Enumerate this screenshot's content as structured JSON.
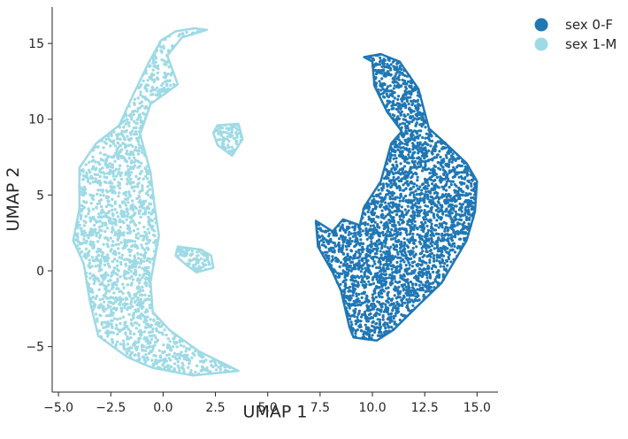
{
  "chart_data": {
    "type": "scatter",
    "title": "",
    "xlabel": "UMAP 1",
    "ylabel": "UMAP 2",
    "xlim": [
      -5.3,
      16.0
    ],
    "ylim": [
      -8.0,
      17.4
    ],
    "xticks": [
      -5.0,
      -2.5,
      0.0,
      2.5,
      5.0,
      7.5,
      10.0,
      12.5,
      15.0
    ],
    "xtick_labels": [
      "−5.0",
      "−2.5",
      "0.0",
      "2.5",
      "5.0",
      "7.5",
      "10.0",
      "12.5",
      "15.0"
    ],
    "yticks": [
      -5,
      0,
      5,
      10,
      15
    ],
    "ytick_labels": [
      "−5",
      "0",
      "5",
      "10",
      "15"
    ],
    "grid": false,
    "legend_position": "outside-top-right",
    "series": [
      {
        "name": "sex 0-F",
        "color": "#1f77b4",
        "clusters": [
          {
            "shape": "cluster with elongated loop at top",
            "outline": [
              [
                7.3,
                3.3
              ],
              [
                8.1,
                2.6
              ],
              [
                8.6,
                3.4
              ],
              [
                9.4,
                3.0
              ],
              [
                9.6,
                4.2
              ],
              [
                10.4,
                5.9
              ],
              [
                10.9,
                8.4
              ],
              [
                11.4,
                9.2
              ],
              [
                10.7,
                10.5
              ],
              [
                10.1,
                12.2
              ],
              [
                10.0,
                13.8
              ],
              [
                9.6,
                14.1
              ],
              [
                10.4,
                14.3
              ],
              [
                11.3,
                13.8
              ],
              [
                12.2,
                12.0
              ],
              [
                12.7,
                9.4
              ],
              [
                13.5,
                8.4
              ],
              [
                14.5,
                7.1
              ],
              [
                15.0,
                5.9
              ],
              [
                14.9,
                3.9
              ],
              [
                14.5,
                2.0
              ],
              [
                13.3,
                -0.8
              ],
              [
                12.1,
                -2.4
              ],
              [
                11.0,
                -3.9
              ],
              [
                10.2,
                -4.6
              ],
              [
                9.1,
                -4.4
              ],
              [
                8.9,
                -3.7
              ],
              [
                8.5,
                -1.3
              ],
              [
                8.1,
                -0.1
              ],
              [
                7.4,
                1.6
              ]
            ],
            "count": 3200
          }
        ]
      },
      {
        "name": "sex 1-M",
        "color": "#9edae5",
        "clusters": [
          {
            "shape": "crescent",
            "outline": [
              [
                1.5,
                16.0
              ],
              [
                2.1,
                15.9
              ],
              [
                0.9,
                15.4
              ],
              [
                0.2,
                14.2
              ],
              [
                0.7,
                12.3
              ],
              [
                -0.6,
                11.0
              ],
              [
                -1.1,
                9.0
              ],
              [
                -0.6,
                6.5
              ],
              [
                -0.4,
                4.2
              ],
              [
                -0.2,
                2.3
              ],
              [
                -0.6,
                -0.7
              ],
              [
                -0.5,
                -2.7
              ],
              [
                0.3,
                -3.9
              ],
              [
                1.7,
                -5.3
              ],
              [
                3.6,
                -6.6
              ],
              [
                1.4,
                -6.9
              ],
              [
                -0.5,
                -6.4
              ],
              [
                -1.7,
                -5.7
              ],
              [
                -3.1,
                -4.3
              ],
              [
                -3.5,
                -2.0
              ],
              [
                -3.8,
                0.5
              ],
              [
                -4.3,
                2.0
              ],
              [
                -4.0,
                4.1
              ],
              [
                -4.0,
                6.8
              ],
              [
                -3.2,
                8.4
              ],
              [
                -2.1,
                9.6
              ],
              [
                -1.4,
                11.7
              ],
              [
                -0.7,
                13.7
              ],
              [
                -0.1,
                15.2
              ],
              [
                0.6,
                15.8
              ]
            ],
            "count": 3600
          },
          {
            "shape": "small blob",
            "outline": [
              [
                2.6,
                9.6
              ],
              [
                3.6,
                9.7
              ],
              [
                3.8,
                8.7
              ],
              [
                3.3,
                7.6
              ],
              [
                2.6,
                8.3
              ],
              [
                2.4,
                9.1
              ]
            ],
            "count": 90
          },
          {
            "shape": "small blob",
            "outline": [
              [
                0.7,
                1.6
              ],
              [
                1.8,
                1.4
              ],
              [
                2.3,
                1.0
              ],
              [
                2.4,
                0.2
              ],
              [
                1.6,
                -0.1
              ],
              [
                1.1,
                0.4
              ],
              [
                0.6,
                1.0
              ]
            ],
            "count": 100
          }
        ]
      }
    ]
  }
}
